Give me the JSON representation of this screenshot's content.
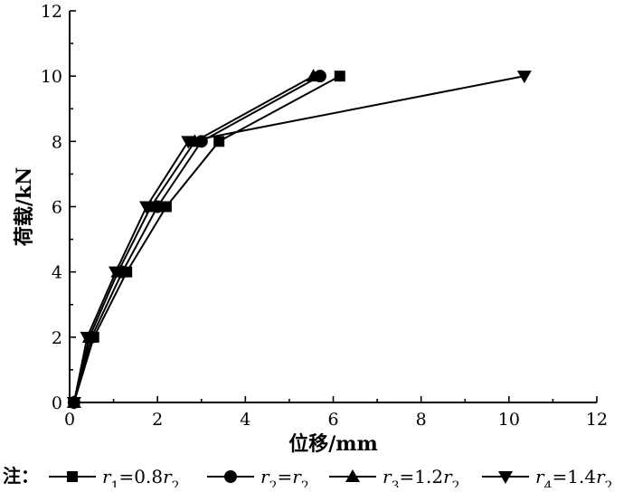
{
  "chart_data": {
    "type": "line",
    "xlabel": "位移/mm",
    "ylabel": "荷载/kN",
    "xlim": [
      0,
      12
    ],
    "ylim": [
      0,
      12
    ],
    "xticks": [
      0,
      2,
      4,
      6,
      8,
      10,
      12
    ],
    "yticks": [
      0,
      2,
      4,
      6,
      8,
      10,
      12
    ],
    "grid": false,
    "legend_position": "bottom",
    "legend_prefix": "注：",
    "series": [
      {
        "name": "r1=0.8r2",
        "label_parts": [
          "r",
          "1",
          "=0.8",
          "r",
          "2"
        ],
        "marker": "square",
        "x": [
          0.1,
          0.55,
          1.3,
          2.2,
          3.4,
          6.15
        ],
        "y": [
          0,
          2,
          4,
          6,
          8,
          10
        ]
      },
      {
        "name": "r2=r2",
        "label_parts": [
          "r",
          "2",
          "=",
          "r",
          "2"
        ],
        "marker": "circle",
        "x": [
          0.1,
          0.5,
          1.2,
          2.0,
          3.0,
          5.7
        ],
        "y": [
          0,
          2,
          4,
          6,
          8,
          10
        ]
      },
      {
        "name": "r3=1.2r2",
        "label_parts": [
          "r",
          "3",
          "=1.2",
          "r",
          "2"
        ],
        "marker": "triangle-up",
        "x": [
          0.1,
          0.45,
          1.1,
          1.85,
          2.85,
          5.55
        ],
        "y": [
          0,
          2,
          4,
          6,
          8,
          10
        ]
      },
      {
        "name": "r4=1.4r2",
        "label_parts": [
          "r",
          "4",
          "=1.4",
          "r",
          "2"
        ],
        "marker": "triangle-down",
        "x": [
          0.1,
          0.4,
          1.05,
          1.75,
          2.7,
          10.35
        ],
        "y": [
          0,
          2,
          4,
          6,
          8,
          10
        ]
      }
    ],
    "colors": {
      "line": "#000000",
      "marker": "#000000",
      "background": "#ffffff"
    }
  }
}
